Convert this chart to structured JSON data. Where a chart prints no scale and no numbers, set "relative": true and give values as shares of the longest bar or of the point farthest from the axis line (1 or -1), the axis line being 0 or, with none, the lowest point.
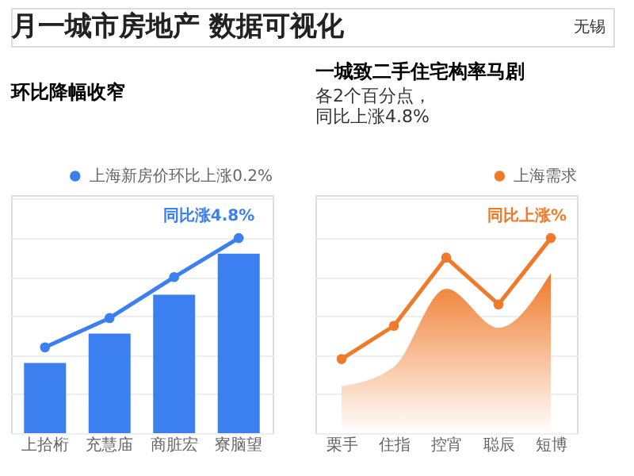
{
  "chart_data": [
    {
      "type": "other",
      "title": "月一城市房地产  数据可视化",
      "annotations": [
        "无锡"
      ]
    },
    {
      "type": "bar",
      "title": "环比降幅收窄",
      "categories": [
        "上拾桁",
        "充慧庙",
        "商脏宏",
        "寮脑望"
      ],
      "relative": true,
      "grid": "y",
      "legend": "top right",
      "series": [
        {
          "type": "bar",
          "color": "#3b7ff0",
          "values": [
            0.36,
            0.51,
            0.71,
            0.92
          ]
        },
        {
          "type": "line",
          "name": "上海新房价环比上涨0.2%",
          "color": "#3b7ff0",
          "marker": "circle",
          "values": [
            0.44,
            0.59,
            0.8,
            1.0
          ]
        }
      ],
      "annotations": [
        {
          "text": "同比涨4.8%",
          "x": "寮脑望",
          "y": 1.0
        }
      ]
    },
    {
      "type": "area",
      "title": "一城致二手住宅构率马剧",
      "subtitle": "各2个百分点，",
      "categories": [
        "栗手",
        "住指",
        "控宵",
        "聪辰",
        "短博"
      ],
      "relative": true,
      "grid": "y",
      "legend": "top right",
      "series": [
        {
          "type": "area",
          "color": "#f07a2a",
          "values": [
            0.24,
            0.34,
            0.74,
            0.54,
            0.82
          ]
        },
        {
          "type": "line",
          "name": "上海需求",
          "color": "#f07a2a",
          "marker": "circle",
          "values": [
            0.38,
            0.55,
            0.9,
            0.66,
            1.0
          ]
        }
      ],
      "annotations": [
        "同比上涨4.8%",
        {
          "text": "同比上涨%",
          "x": "短博",
          "y": 1.0
        }
      ]
    }
  ]
}
